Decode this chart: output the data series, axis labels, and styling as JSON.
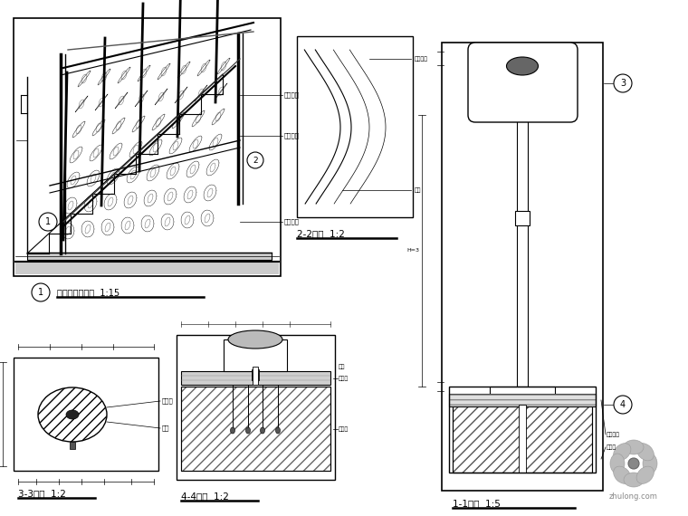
{
  "bg_color": "#ffffff",
  "line_color": "#000000",
  "title1": "楼梯栏杆立面图  1:15",
  "title2": "2-2剖面  1:2",
  "title3": "1-1剖面  1:5",
  "title4": "3-3剖面  1:2",
  "title5": "4-4剖面  1:2",
  "watermark": "zhulong.com",
  "label_bg": "#f0f0f0"
}
